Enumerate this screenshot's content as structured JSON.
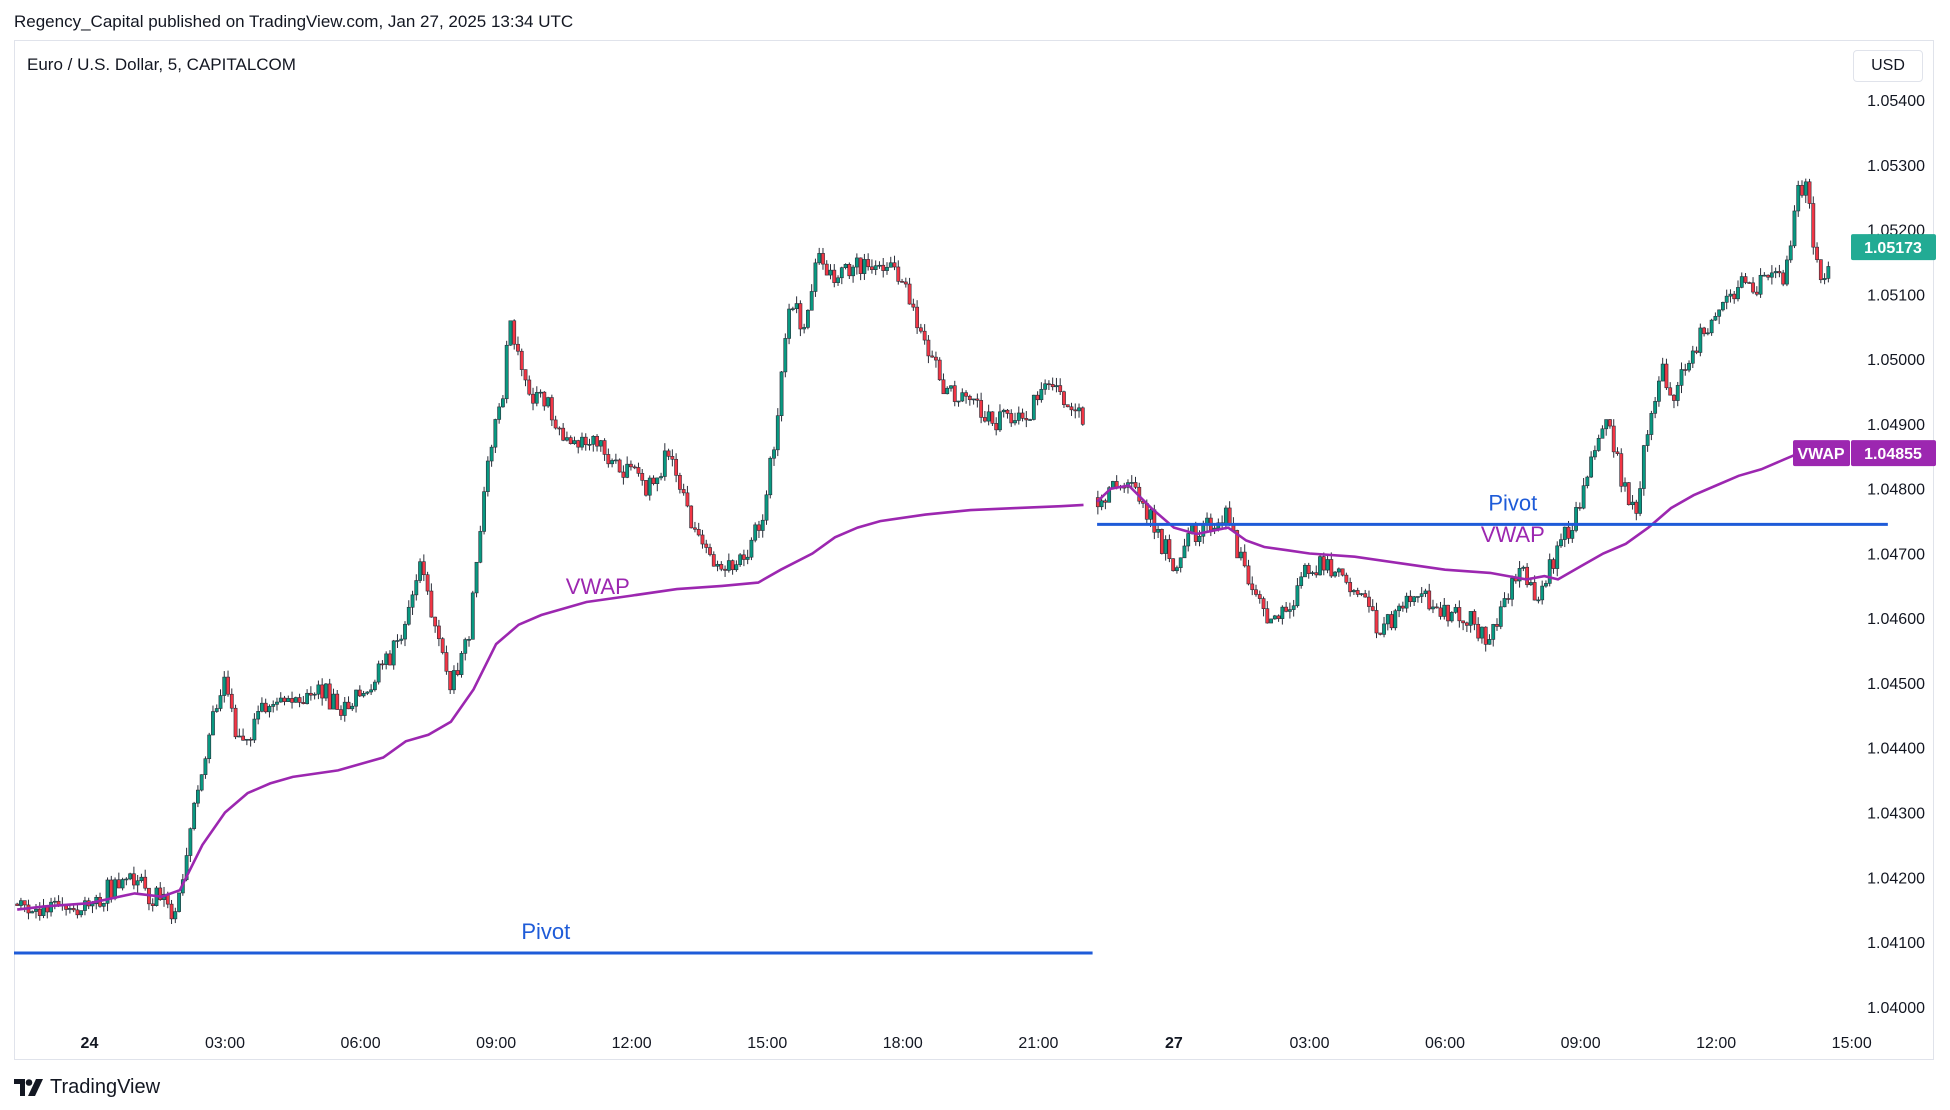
{
  "header": {
    "publish_line": "Regency_Capital published on TradingView.com, Jan 27, 2025 13:34 UTC"
  },
  "symbol": {
    "title": "Euro / U.S. Dollar, 5, CAPITALCOM"
  },
  "currency_button": {
    "label": "USD"
  },
  "footer": {
    "brand": "TradingView"
  },
  "colors": {
    "up": "#089981",
    "down": "#f23645",
    "candle_body": "#2a2e39",
    "vwap": "#9c27b0",
    "pivot": "#1e5bd8",
    "price_tag": "#22ab94"
  },
  "chart_data": {
    "type": "candlestick",
    "title": "Euro / U.S. Dollar, 5, CAPITALCOM",
    "ylim": [
      1.03995,
      1.05425
    ],
    "y_ticks": [
      "1.05400",
      "1.05300",
      "1.05200",
      "1.05100",
      "1.05000",
      "1.04900",
      "1.04800",
      "1.04700",
      "1.04600",
      "1.04500",
      "1.04400",
      "1.04300",
      "1.04200",
      "1.04100",
      "1.04000"
    ],
    "x_ticks": [
      {
        "label": "24",
        "t": 0,
        "bold": true
      },
      {
        "label": "03:00",
        "t": 3
      },
      {
        "label": "06:00",
        "t": 6
      },
      {
        "label": "09:00",
        "t": 9
      },
      {
        "label": "12:00",
        "t": 12
      },
      {
        "label": "15:00",
        "t": 15
      },
      {
        "label": "18:00",
        "t": 18
      },
      {
        "label": "21:00",
        "t": 21
      },
      {
        "label": "27",
        "t": 24,
        "bold": true
      },
      {
        "label": "03:00",
        "t": 27
      },
      {
        "label": "06:00",
        "t": 30
      },
      {
        "label": "09:00",
        "t": 33
      },
      {
        "label": "12:00",
        "t": 36
      },
      {
        "label": "15:00",
        "t": 39
      }
    ],
    "xlim": [
      -1.67,
      40.6
    ],
    "price_path": [
      [
        -1.6,
        1.0415
      ],
      [
        -1.0,
        1.04155
      ],
      [
        -0.5,
        1.0415
      ],
      [
        0.0,
        1.0416
      ],
      [
        0.5,
        1.04185
      ],
      [
        0.9,
        1.042
      ],
      [
        1.2,
        1.0418
      ],
      [
        1.6,
        1.04165
      ],
      [
        1.8,
        1.0414
      ],
      [
        2.0,
        1.0416
      ],
      [
        2.3,
        1.043
      ],
      [
        2.5,
        1.0435
      ],
      [
        2.7,
        1.0445
      ],
      [
        3.0,
        1.045
      ],
      [
        3.2,
        1.0443
      ],
      [
        3.5,
        1.0442
      ],
      [
        4.0,
        1.0448
      ],
      [
        4.5,
        1.0447
      ],
      [
        5.0,
        1.045
      ],
      [
        5.5,
        1.0446
      ],
      [
        6.0,
        1.0448
      ],
      [
        6.5,
        1.0452
      ],
      [
        7.0,
        1.046
      ],
      [
        7.3,
        1.0468
      ],
      [
        7.7,
        1.0456
      ],
      [
        8.0,
        1.045
      ],
      [
        8.4,
        1.0458
      ],
      [
        8.7,
        1.0478
      ],
      [
        8.9,
        1.0488
      ],
      [
        9.1,
        1.0492
      ],
      [
        9.3,
        1.0505
      ],
      [
        9.5,
        1.05
      ],
      [
        9.8,
        1.0495
      ],
      [
        10.2,
        1.0492
      ],
      [
        10.6,
        1.0488
      ],
      [
        11.0,
        1.0488
      ],
      [
        11.4,
        1.0486
      ],
      [
        12.0,
        1.0482
      ],
      [
        12.4,
        1.048
      ],
      [
        12.8,
        1.0485
      ],
      [
        13.2,
        1.0478
      ],
      [
        13.6,
        1.047
      ],
      [
        14.0,
        1.0467
      ],
      [
        14.5,
        1.047
      ],
      [
        14.9,
        1.0476
      ],
      [
        15.2,
        1.049
      ],
      [
        15.5,
        1.051
      ],
      [
        15.8,
        1.0505
      ],
      [
        16.1,
        1.0515
      ],
      [
        16.5,
        1.0512
      ],
      [
        17.0,
        1.0514
      ],
      [
        17.5,
        1.0513
      ],
      [
        17.8,
        1.0515
      ],
      [
        18.2,
        1.0508
      ],
      [
        18.6,
        1.05
      ],
      [
        19.0,
        1.0495
      ],
      [
        19.5,
        1.0493
      ],
      [
        20.0,
        1.0491
      ],
      [
        20.4,
        1.049
      ],
      [
        20.8,
        1.0492
      ],
      [
        21.2,
        1.0495
      ],
      [
        21.7,
        1.0493
      ],
      [
        22.0,
        1.049
      ],
      [
        22.3,
        1.0478
      ],
      [
        22.7,
        1.0481
      ],
      [
        23.0,
        1.0482
      ],
      [
        23.3,
        1.0478
      ],
      [
        23.7,
        1.0472
      ],
      [
        24.0,
        1.0468
      ],
      [
        24.4,
        1.0473
      ],
      [
        24.8,
        1.0475
      ],
      [
        25.2,
        1.0476
      ],
      [
        25.6,
        1.0466
      ],
      [
        25.9,
        1.0462
      ],
      [
        26.2,
        1.046
      ],
      [
        26.6,
        1.0462
      ],
      [
        27.0,
        1.0468
      ],
      [
        27.4,
        1.0469
      ],
      [
        27.8,
        1.0465
      ],
      [
        28.2,
        1.0463
      ],
      [
        28.6,
        1.0458
      ],
      [
        29.0,
        1.0461
      ],
      [
        29.4,
        1.0463
      ],
      [
        29.8,
        1.0462
      ],
      [
        30.2,
        1.046
      ],
      [
        30.6,
        1.046
      ],
      [
        31.0,
        1.0456
      ],
      [
        31.3,
        1.0462
      ],
      [
        31.7,
        1.0468
      ],
      [
        32.0,
        1.0462
      ],
      [
        32.3,
        1.0468
      ],
      [
        32.6,
        1.0472
      ],
      [
        33.0,
        1.0478
      ],
      [
        33.3,
        1.0485
      ],
      [
        33.6,
        1.049
      ],
      [
        33.9,
        1.0482
      ],
      [
        34.2,
        1.0476
      ],
      [
        34.5,
        1.049
      ],
      [
        34.8,
        1.0498
      ],
      [
        35.1,
        1.0494
      ],
      [
        35.4,
        1.05
      ],
      [
        35.7,
        1.0505
      ],
      [
        36.0,
        1.0507
      ],
      [
        36.3,
        1.051
      ],
      [
        36.6,
        1.0512
      ],
      [
        36.9,
        1.051
      ],
      [
        37.2,
        1.0515
      ],
      [
        37.5,
        1.0513
      ],
      [
        37.8,
        1.0525
      ],
      [
        38.0,
        1.0528
      ],
      [
        38.2,
        1.0515
      ],
      [
        38.4,
        1.0512
      ],
      [
        38.55,
        1.05173
      ]
    ],
    "vwap": {
      "name": "VWAP",
      "value_label": "1.04855",
      "segments": [
        [
          [
            -1.6,
            1.0415
          ],
          [
            -1.0,
            1.04155
          ],
          [
            0.0,
            1.0416
          ],
          [
            1.0,
            1.04175
          ],
          [
            1.6,
            1.0417
          ],
          [
            2.0,
            1.0418
          ],
          [
            2.5,
            1.0425
          ],
          [
            3.0,
            1.043
          ],
          [
            3.5,
            1.0433
          ],
          [
            4.0,
            1.04345
          ],
          [
            4.5,
            1.04355
          ],
          [
            5.5,
            1.04365
          ],
          [
            6.5,
            1.04385
          ],
          [
            7.0,
            1.0441
          ],
          [
            7.5,
            1.0442
          ],
          [
            8.0,
            1.0444
          ],
          [
            8.5,
            1.0449
          ],
          [
            9.0,
            1.0456
          ],
          [
            9.5,
            1.0459
          ],
          [
            10.0,
            1.04605
          ],
          [
            11.0,
            1.04625
          ],
          [
            12.0,
            1.04635
          ],
          [
            13.0,
            1.04645
          ],
          [
            14.0,
            1.0465
          ],
          [
            14.8,
            1.04655
          ],
          [
            15.3,
            1.04675
          ],
          [
            16.0,
            1.047
          ],
          [
            16.5,
            1.04725
          ],
          [
            17.0,
            1.0474
          ],
          [
            17.5,
            1.0475
          ],
          [
            18.5,
            1.0476
          ],
          [
            19.5,
            1.04767
          ],
          [
            20.5,
            1.0477
          ],
          [
            21.5,
            1.04773
          ],
          [
            22.0,
            1.04775
          ]
        ],
        [
          [
            22.3,
            1.0478
          ],
          [
            22.6,
            1.048
          ],
          [
            23.0,
            1.04805
          ],
          [
            23.5,
            1.0477
          ],
          [
            24.0,
            1.0474
          ],
          [
            24.5,
            1.0473
          ],
          [
            25.2,
            1.0474
          ],
          [
            25.6,
            1.0472
          ],
          [
            26.0,
            1.0471
          ],
          [
            26.5,
            1.04705
          ],
          [
            27.0,
            1.047
          ],
          [
            28.0,
            1.04695
          ],
          [
            29.0,
            1.04685
          ],
          [
            30.0,
            1.04675
          ],
          [
            31.0,
            1.0467
          ],
          [
            31.8,
            1.0466
          ],
          [
            32.2,
            1.04665
          ],
          [
            32.5,
            1.0466
          ],
          [
            33.0,
            1.0468
          ],
          [
            33.5,
            1.047
          ],
          [
            34.0,
            1.04715
          ],
          [
            34.5,
            1.0474
          ],
          [
            35.0,
            1.0477
          ],
          [
            35.5,
            1.0479
          ],
          [
            36.0,
            1.04805
          ],
          [
            36.5,
            1.0482
          ],
          [
            37.0,
            1.0483
          ],
          [
            37.5,
            1.04845
          ],
          [
            38.0,
            1.0486
          ],
          [
            38.55,
            1.04855
          ]
        ]
      ]
    },
    "pivots": [
      {
        "name": "Pivot",
        "value": 1.04083,
        "x_start": -1.67,
        "x_end": 22.2,
        "label_x": 10.1
      },
      {
        "name": "Pivot",
        "value": 1.04745,
        "x_start": 22.3,
        "x_end": 39.8,
        "label_x": 31.5
      }
    ],
    "line_labels": [
      {
        "text": "VWAP",
        "t": 11.25,
        "value": 1.04625
      },
      {
        "text": "VWAP",
        "t": 31.5,
        "value": 1.04705
      }
    ],
    "last_price": {
      "value": 1.05173,
      "label": "1.05173"
    }
  }
}
